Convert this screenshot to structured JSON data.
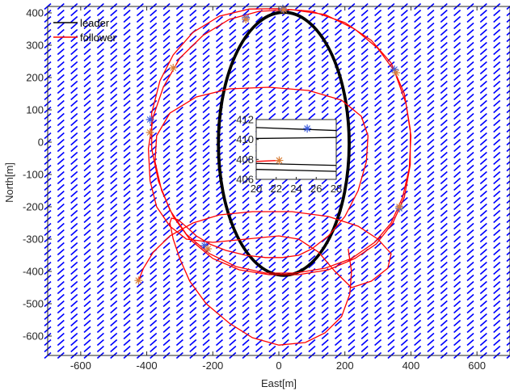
{
  "chart_data": {
    "type": "line",
    "title": "",
    "xlabel": "East[m]",
    "ylabel": "North[m]",
    "xlim": [
      -700,
      700
    ],
    "ylim": [
      -660,
      420
    ],
    "x_ticks": [
      -600,
      -400,
      -200,
      0,
      200,
      400,
      600
    ],
    "y_ticks": [
      -600,
      -500,
      -400,
      -300,
      -200,
      -100,
      0,
      100,
      200,
      300,
      400
    ],
    "grid": false,
    "legend_position": "top-left",
    "colors": {
      "leader": "#000000",
      "follower": "#ff0000",
      "quiver": "#0000ff",
      "leader_marker": "#3b5bdb",
      "follower_marker": "#d9803a"
    },
    "series": [
      {
        "name": "leader",
        "kind": "circle",
        "center": [
          15,
          -5
        ],
        "radius_x": 198,
        "radius_y": 407,
        "passes": 3
      },
      {
        "name": "follower",
        "points": [
          [
            -425,
            -428
          ],
          [
            -410,
            -390
          ],
          [
            -380,
            -340
          ],
          [
            -330,
            -290
          ],
          [
            -260,
            -250
          ],
          [
            -180,
            -225
          ],
          [
            -80,
            -215
          ],
          [
            40,
            -215
          ],
          [
            150,
            -230
          ],
          [
            240,
            -260
          ],
          [
            300,
            -300
          ],
          [
            340,
            -345
          ],
          [
            330,
            -390
          ],
          [
            280,
            -430
          ],
          [
            220,
            -450
          ],
          [
            170,
            -400
          ],
          [
            120,
            -340
          ],
          [
            60,
            -300
          ],
          [
            0,
            -290
          ],
          [
            -100,
            -300
          ],
          [
            -200,
            -310
          ],
          [
            -280,
            -300
          ],
          [
            -330,
            -260
          ],
          [
            -370,
            -200
          ],
          [
            -390,
            -120
          ],
          [
            -395,
            -20
          ],
          [
            -380,
            80
          ],
          [
            -350,
            170
          ],
          [
            -300,
            260
          ],
          [
            -230,
            330
          ],
          [
            -150,
            380
          ],
          [
            -60,
            405
          ],
          [
            40,
            410
          ],
          [
            140,
            395
          ],
          [
            230,
            350
          ],
          [
            300,
            290
          ],
          [
            350,
            220
          ],
          [
            385,
            120
          ],
          [
            400,
            20
          ],
          [
            395,
            -80
          ],
          [
            375,
            -170
          ],
          [
            340,
            -250
          ],
          [
            290,
            -310
          ],
          [
            220,
            -360
          ],
          [
            140,
            -390
          ],
          [
            50,
            -405
          ],
          [
            -40,
            -405
          ],
          [
            -130,
            -385
          ],
          [
            -210,
            -345
          ],
          [
            -280,
            -285
          ],
          [
            -330,
            -210
          ],
          [
            -365,
            -120
          ],
          [
            -385,
            -20
          ],
          [
            -385,
            90
          ],
          [
            -360,
            190
          ],
          [
            -320,
            270
          ],
          [
            -260,
            340
          ],
          [
            -180,
            390
          ],
          [
            -90,
            412
          ],
          [
            0,
            413
          ],
          [
            100,
            405
          ],
          [
            200,
            370
          ],
          [
            280,
            315
          ],
          [
            340,
            245
          ],
          [
            380,
            150
          ],
          [
            398,
            40
          ],
          [
            398,
            -70
          ],
          [
            380,
            -170
          ],
          [
            345,
            -250
          ],
          [
            295,
            -315
          ],
          [
            230,
            -360
          ],
          [
            150,
            -395
          ],
          [
            60,
            -410
          ],
          [
            -30,
            -410
          ],
          [
            -120,
            -395
          ],
          [
            -200,
            -360
          ],
          [
            -270,
            -300
          ],
          [
            -320,
            -230
          ],
          [
            -355,
            -150
          ],
          [
            -375,
            -60
          ],
          [
            -370,
            20
          ],
          [
            -330,
            90
          ],
          [
            -250,
            140
          ],
          [
            -150,
            165
          ],
          [
            -30,
            170
          ],
          [
            90,
            160
          ],
          [
            190,
            130
          ],
          [
            250,
            80
          ],
          [
            270,
            20
          ],
          [
            265,
            -60
          ],
          [
            240,
            -150
          ],
          [
            200,
            -230
          ],
          [
            150,
            -290
          ],
          [
            100,
            -330
          ],
          [
            60,
            -350
          ],
          [
            10,
            -357
          ],
          [
            -40,
            -357
          ],
          [
            -100,
            -350
          ],
          [
            -160,
            -335
          ],
          [
            -210,
            -315
          ],
          [
            -250,
            -290
          ],
          [
            -280,
            -262
          ],
          [
            -305,
            -240
          ],
          [
            -325,
            -235
          ],
          [
            -330,
            -250
          ],
          [
            -320,
            -300
          ],
          [
            -300,
            -360
          ],
          [
            -270,
            -430
          ],
          [
            -220,
            -500
          ],
          [
            -150,
            -560
          ],
          [
            -80,
            -605
          ],
          [
            0,
            -628
          ],
          [
            80,
            -620
          ],
          [
            140,
            -590
          ],
          [
            190,
            -540
          ],
          [
            215,
            -470
          ],
          [
            220,
            -400
          ],
          [
            210,
            -330
          ]
        ]
      }
    ],
    "inset": {
      "xlim": [
        20,
        28
      ],
      "ylim": [
        406,
        412
      ],
      "x_ticks": [
        20,
        22,
        24,
        26,
        28
      ],
      "y_ticks": [
        406,
        408,
        410,
        412
      ],
      "leader_segments": [
        [
          [
            20,
            411.2
          ],
          [
            28,
            410.9
          ]
        ],
        [
          [
            20,
            410.1
          ],
          [
            28,
            410.2
          ]
        ],
        [
          [
            20,
            407.6
          ],
          [
            28,
            407.4
          ]
        ],
        [
          [
            20,
            407.0
          ],
          [
            28,
            406.8
          ]
        ]
      ],
      "follower_segment": [
        [
          20,
          407.8
        ],
        [
          22.3,
          407.9
        ]
      ],
      "leader_marker": [
        25.1,
        411.1
      ],
      "follower_marker": [
        22.3,
        407.9
      ]
    },
    "leader_markers": [
      [
        12,
        413
      ],
      [
        -100,
        385
      ],
      [
        350,
        225
      ],
      [
        -390,
        70
      ],
      [
        365,
        -205
      ],
      [
        -225,
        -320
      ]
    ],
    "follower_markers": [
      [
        15,
        410
      ],
      [
        -100,
        380
      ],
      [
        -320,
        230
      ],
      [
        355,
        215
      ],
      [
        -390,
        30
      ],
      [
        365,
        -200
      ],
      [
        -215,
        -330
      ],
      [
        -425,
        -428
      ]
    ]
  }
}
